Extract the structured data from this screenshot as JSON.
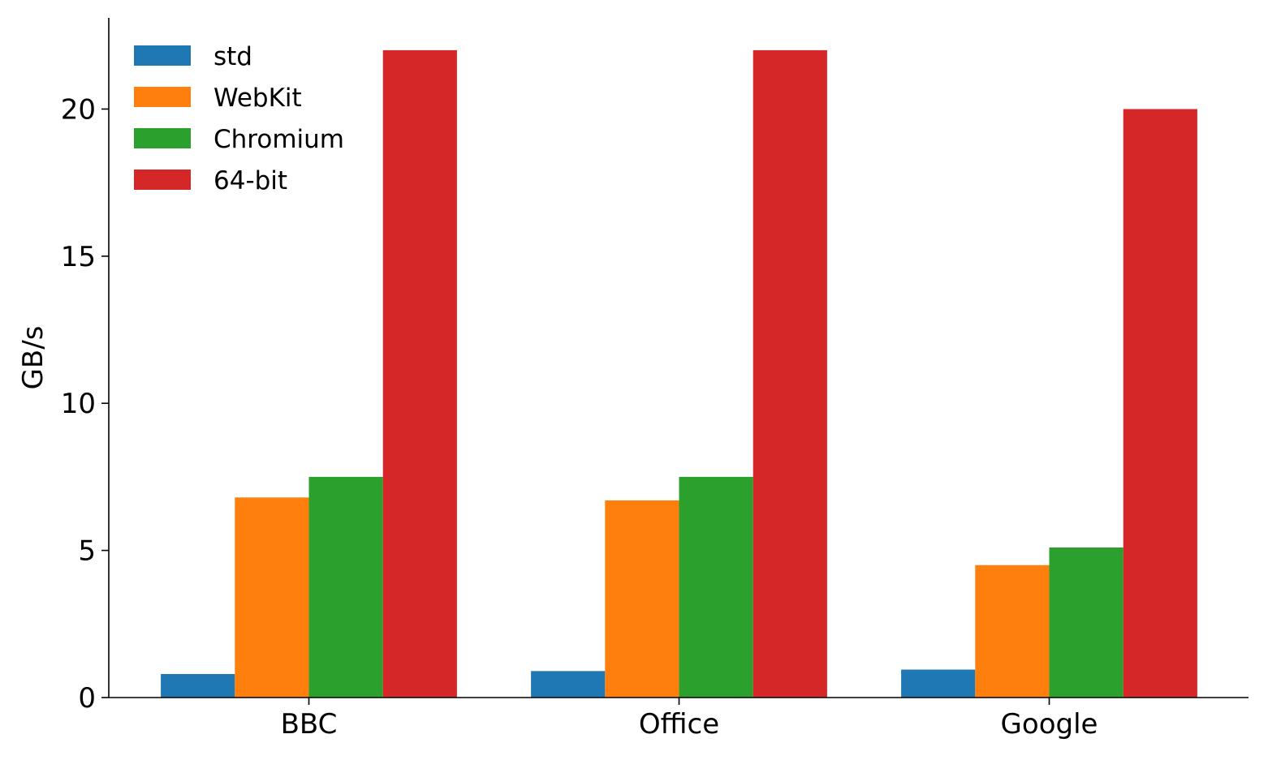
{
  "chart_data": {
    "type": "bar",
    "title": "",
    "xlabel": "",
    "ylabel": "GB/s",
    "categories": [
      "BBC",
      "Office",
      "Google"
    ],
    "ylim": [
      0,
      23.1
    ],
    "yticks": [
      0,
      5,
      10,
      15,
      20
    ],
    "grid": false,
    "legend_position": "top-left",
    "series": [
      {
        "name": "std",
        "color": "#1f77b4",
        "values": [
          0.8,
          0.9,
          0.95
        ]
      },
      {
        "name": "WebKit",
        "color": "#ff7f0e",
        "values": [
          6.8,
          6.7,
          4.5
        ]
      },
      {
        "name": "Chromium",
        "color": "#2ca02c",
        "values": [
          7.5,
          7.5,
          5.1
        ]
      },
      {
        "name": "64-bit",
        "color": "#d62728",
        "values": [
          22.0,
          22.0,
          20.0
        ]
      }
    ]
  }
}
